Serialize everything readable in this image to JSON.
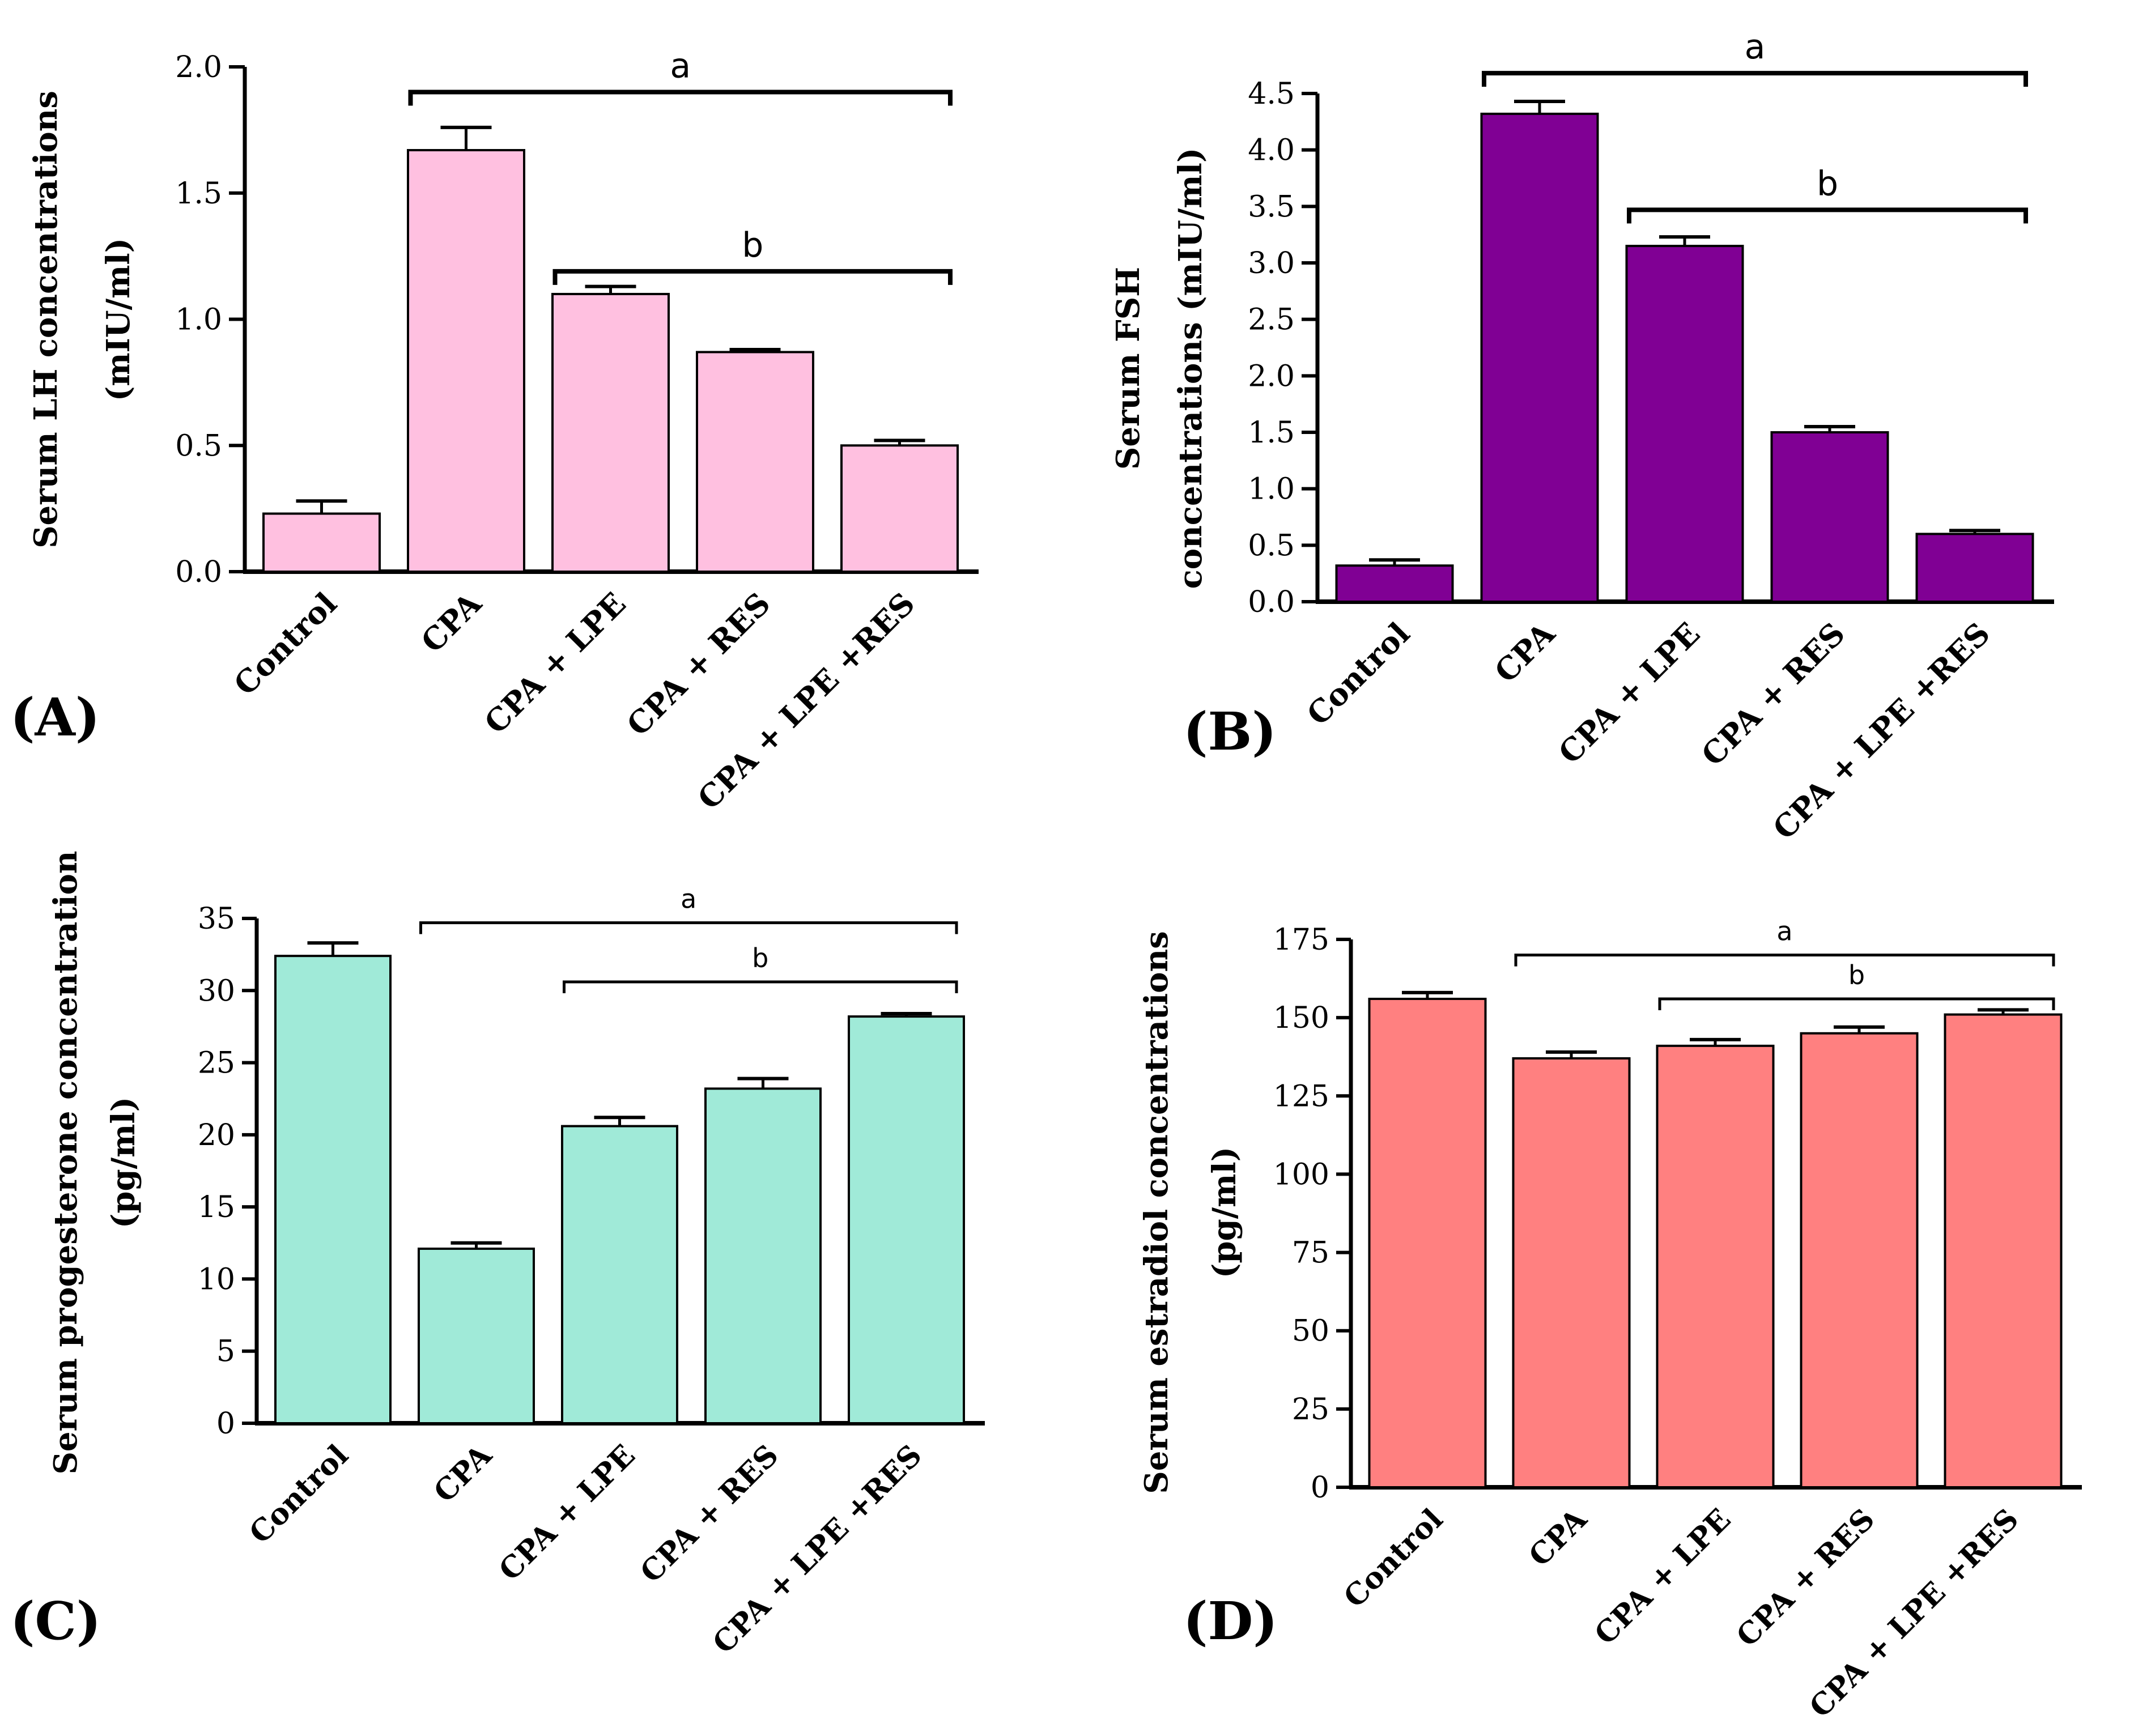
{
  "chart_data": [
    {
      "id": "A",
      "type": "bar",
      "panel_label": "(A)",
      "ylabel_lines": [
        "Serum LH concentrations",
        "(mIU/ml)"
      ],
      "categories": [
        "Control",
        "CPA",
        "CPA + LPE",
        "CPA + RES",
        "CPA + LPE +RES"
      ],
      "values": [
        0.23,
        1.67,
        1.1,
        0.87,
        0.5
      ],
      "errors": [
        0.05,
        0.09,
        0.03,
        0.01,
        0.02
      ],
      "ylim": [
        0,
        2.0
      ],
      "yticks": [
        "0.0",
        "0.5",
        "1.0",
        "1.5",
        "2.0"
      ],
      "color": "#FFC0E0",
      "brackets": [
        {
          "label": "a",
          "from": 1,
          "to": 4,
          "level": 1.9
        },
        {
          "label": "b",
          "from": 2,
          "to": 4,
          "level": 1.19
        }
      ]
    },
    {
      "id": "B",
      "type": "bar",
      "panel_label": "(B)",
      "ylabel_lines": [
        "Serum FSH",
        "concentrations (mIU/ml)"
      ],
      "categories": [
        "Control",
        "CPA",
        "CPA + LPE",
        "CPA + RES",
        "CPA + LPE +RES"
      ],
      "values": [
        0.32,
        4.32,
        3.15,
        1.5,
        0.6
      ],
      "errors": [
        0.05,
        0.11,
        0.08,
        0.05,
        0.03
      ],
      "ylim": [
        0,
        4.5
      ],
      "yticks": [
        "0.0",
        "0.5",
        "1.0",
        "1.5",
        "2.0",
        "2.5",
        "3.0",
        "3.5",
        "4.0",
        "4.5"
      ],
      "color": "#800094",
      "brackets": [
        {
          "label": "a",
          "from": 1,
          "to": 4,
          "level": 4.68
        },
        {
          "label": "b",
          "from": 2,
          "to": 4,
          "level": 3.47
        }
      ]
    },
    {
      "id": "C",
      "type": "bar",
      "panel_label": "(C)",
      "ylabel_lines": [
        "Serum progesterone concentration",
        "(pg/ml)"
      ],
      "categories": [
        "Control",
        "CPA",
        "CPA + LPE",
        "CPA + RES",
        "CPA + LPE +RES"
      ],
      "values": [
        32.4,
        12.1,
        20.6,
        23.2,
        28.2
      ],
      "errors": [
        0.9,
        0.4,
        0.6,
        0.7,
        0.2
      ],
      "ylim": [
        0,
        35
      ],
      "yticks": [
        "0",
        "5",
        "10",
        "15",
        "20",
        "25",
        "30",
        "35"
      ],
      "color": "#A0EAD8",
      "brackets": [
        {
          "label": "a",
          "from": 1,
          "to": 4,
          "level": 34.7
        },
        {
          "label": "b",
          "from": 2,
          "to": 4,
          "level": 30.6
        }
      ]
    },
    {
      "id": "D",
      "type": "bar",
      "panel_label": "(D)",
      "ylabel_lines": [
        "Serum estradiol concentrations",
        "(pg/ml)"
      ],
      "categories": [
        "Control",
        "CPA",
        "CPA + LPE",
        "CPA + RES",
        "CPA + LPE +RES"
      ],
      "values": [
        156,
        137,
        141,
        145,
        151
      ],
      "errors": [
        2,
        2,
        2,
        2,
        1.5
      ],
      "ylim": [
        0,
        175
      ],
      "yticks": [
        "0",
        "25",
        "50",
        "75",
        "100",
        "125",
        "150",
        "175"
      ],
      "color": "#FF8080",
      "brackets": [
        {
          "label": "a",
          "from": 1,
          "to": 4,
          "level": 170
        },
        {
          "label": "b",
          "from": 2,
          "to": 4,
          "level": 156
        }
      ]
    }
  ]
}
